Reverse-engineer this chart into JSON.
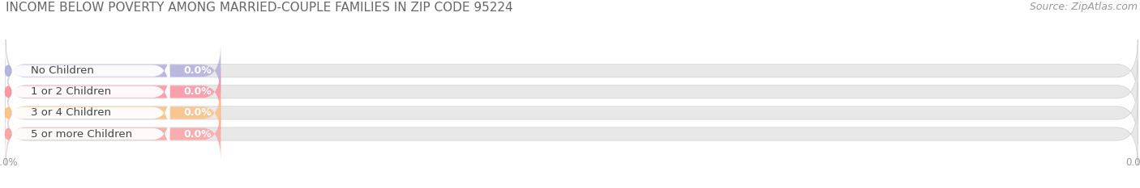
{
  "title": "INCOME BELOW POVERTY AMONG MARRIED-COUPLE FAMILIES IN ZIP CODE 95224",
  "source": "Source: ZipAtlas.com",
  "categories": [
    "No Children",
    "1 or 2 Children",
    "3 or 4 Children",
    "5 or more Children"
  ],
  "values": [
    0.0,
    0.0,
    0.0,
    0.0
  ],
  "bar_colors": [
    "#aaaadd",
    "#ff8899",
    "#ffbb77",
    "#ff9999"
  ],
  "bar_bg_color": "#e8e8e8",
  "title_fontsize": 11,
  "label_fontsize": 9.5,
  "value_fontsize": 9,
  "source_fontsize": 9,
  "background_color": "#ffffff",
  "bar_height": 0.62,
  "xlim_max": 100
}
